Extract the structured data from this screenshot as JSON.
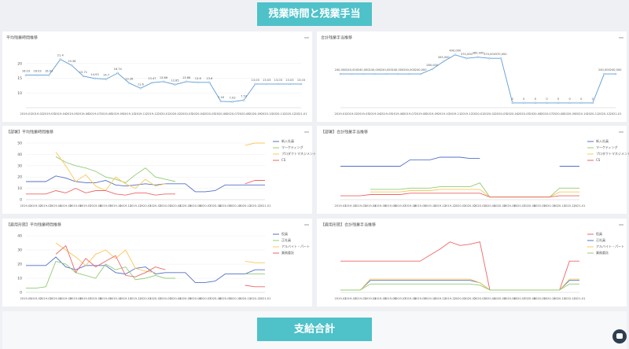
{
  "header": {
    "title": "残業時間と残業手当"
  },
  "footer": {
    "title": "支給合計"
  },
  "chart_data": [
    {
      "type": "line",
      "title": "平均残業時間推移",
      "color": "#5b9bd5",
      "grid": true,
      "categories": [
        "2019-01",
        "2019-02",
        "2019-03",
        "2019-04",
        "2019-05",
        "2019-06",
        "2019-07",
        "2019-08",
        "2019-09",
        "2019-10",
        "2019-11",
        "2019-12",
        "2020-01",
        "2020-02",
        "2020-03",
        "2020-04",
        "2020-05",
        "2020-06",
        "2020-07",
        "2020-08",
        "2020-09",
        "2020-10",
        "2020-11",
        "2020-12",
        "2021-01"
      ],
      "values": [
        16.03,
        16.03,
        16.03,
        21.4,
        19.36,
        15.71,
        14.93,
        14.7,
        16.74,
        13.36,
        11.6,
        13.47,
        13.86,
        12.85,
        13.86,
        13.6,
        13.6,
        7.16,
        7.03,
        7.53,
        13.03,
        13.03,
        13.03,
        13.03,
        13.03
      ],
      "ylim": [
        5,
        25
      ],
      "yticks": [
        10,
        15,
        20
      ]
    },
    {
      "type": "line",
      "title": "合計残業手当推移",
      "color": "#5b9bd5",
      "grid": true,
      "categories": [
        "2019-01",
        "2019-02",
        "2019-03",
        "2019-04",
        "2019-05",
        "2019-06",
        "2019-07",
        "2019-08",
        "2019-09",
        "2019-10",
        "2019-11",
        "2019-12",
        "2020-01",
        "2020-02",
        "2020-03",
        "2020-04",
        "2020-05",
        "2020-06",
        "2020-07",
        "2020-08",
        "2020-09",
        "2020-10",
        "2020-11",
        "2020-12",
        "2021-01"
      ],
      "values": [
        240000,
        240000,
        240000,
        240000,
        240000,
        240000,
        240000,
        240000,
        280000,
        345000,
        400000,
        370000,
        380000,
        370000,
        370000,
        0,
        0,
        0,
        0,
        0,
        0,
        0,
        0,
        240000,
        240000
      ],
      "value_labels": [
        "240,000",
        "240,000",
        "240,000",
        "240,000",
        "240,000",
        "240,000",
        "240,000",
        "240,000",
        "280,000",
        "345,000",
        "400,000",
        "370,000",
        "380,000",
        "370,000",
        "370,000",
        "0",
        "0",
        "0",
        "0",
        "0",
        "0",
        "0",
        "0",
        "240,000",
        "240,000"
      ],
      "ylim": [
        -40000,
        450000
      ],
      "yticks": []
    },
    {
      "type": "line",
      "title": "【部署】平均残業時間推移",
      "grid": true,
      "categories": [
        "2019-01",
        "2019-02",
        "2019-03",
        "2019-04",
        "2019-05",
        "2019-06",
        "2019-07",
        "2019-08",
        "2019-09",
        "2019-10",
        "2019-11",
        "2019-12",
        "2020-01",
        "2020-02",
        "2020-03",
        "2020-04",
        "2020-05",
        "2020-06",
        "2020-07",
        "2020-08",
        "2020-09",
        "2020-10",
        "2020-11",
        "2020-12",
        "2021-01"
      ],
      "series": [
        {
          "name": "新入社員",
          "color": "#5470c6",
          "values": [
            16,
            16,
            16,
            21,
            19,
            16,
            15,
            15,
            17,
            13,
            12,
            13,
            14,
            13,
            14,
            14,
            14,
            7,
            7,
            8,
            13,
            13,
            13,
            13,
            13
          ]
        },
        {
          "name": "マーケティング",
          "color": "#91cc75",
          "values": [
            null,
            null,
            null,
            38,
            33,
            30,
            28,
            25,
            20,
            18,
            15,
            22,
            28,
            20,
            18,
            16,
            null,
            null,
            null,
            null,
            null,
            null,
            null,
            null,
            null
          ]
        },
        {
          "name": "プロダクトマネジメント",
          "color": "#fac858",
          "values": [
            null,
            null,
            null,
            42,
            30,
            16,
            22,
            12,
            8,
            20,
            14,
            10,
            18,
            12,
            14,
            null,
            null,
            null,
            null,
            null,
            null,
            null,
            48,
            50,
            50
          ]
        },
        {
          "name": "CS",
          "color": "#ee6666",
          "values": [
            5,
            5,
            5,
            8,
            6,
            10,
            6,
            8,
            8,
            5,
            4,
            6,
            6,
            4,
            5,
            5,
            null,
            null,
            null,
            null,
            null,
            null,
            14,
            17,
            17
          ]
        }
      ],
      "ylim": [
        0,
        50
      ],
      "yticks": [
        0,
        10,
        20,
        30,
        40,
        50
      ]
    },
    {
      "type": "line",
      "title": "【部署】合計残業手当推移",
      "grid": true,
      "categories": [
        "2019-01",
        "2019-02",
        "2019-03",
        "2019-04",
        "2019-05",
        "2019-06",
        "2019-07",
        "2019-08",
        "2019-09",
        "2019-10",
        "2019-11",
        "2019-12",
        "2020-01",
        "2020-02",
        "2020-03",
        "2020-04",
        "2020-05",
        "2020-06",
        "2020-07",
        "2020-08",
        "2020-09",
        "2020-10",
        "2020-11",
        "2020-12",
        "2021-01"
      ],
      "series": [
        {
          "name": "新入社員",
          "color": "#5470c6",
          "values": [
            240000,
            240000,
            240000,
            240000,
            240000,
            240000,
            240000,
            290000,
            290000,
            290000,
            310000,
            310000,
            310000,
            300000,
            300000,
            null,
            null,
            null,
            null,
            null,
            null,
            null,
            240000,
            240000,
            240000
          ]
        },
        {
          "name": "マーケティング",
          "color": "#91cc75",
          "values": [
            null,
            null,
            null,
            60000,
            60000,
            60000,
            60000,
            70000,
            70000,
            70000,
            80000,
            80000,
            80000,
            80000,
            110000,
            0,
            0,
            0,
            0,
            0,
            0,
            0,
            70000,
            70000,
            70000
          ]
        },
        {
          "name": "プロダクトマネジメント",
          "color": "#fac858",
          "values": [
            null,
            null,
            null,
            40000,
            40000,
            40000,
            40000,
            50000,
            50000,
            50000,
            60000,
            60000,
            60000,
            60000,
            60000,
            0,
            0,
            0,
            0,
            0,
            0,
            0,
            40000,
            40000,
            40000
          ]
        },
        {
          "name": "CS",
          "color": "#ee6666",
          "values": [
            10000,
            10000,
            10000,
            20000,
            20000,
            20000,
            20000,
            30000,
            30000,
            30000,
            30000,
            30000,
            30000,
            30000,
            30000,
            0,
            0,
            0,
            0,
            0,
            0,
            0,
            10000,
            10000,
            10000
          ]
        }
      ],
      "ylim": [
        -20000,
        420000
      ],
      "yticks": []
    },
    {
      "type": "line",
      "title": "【雇用形態】平均残業時間推移",
      "grid": true,
      "categories": [
        "2019-01",
        "2019-02",
        "2019-03",
        "2019-04",
        "2019-05",
        "2019-06",
        "2019-07",
        "2019-08",
        "2019-09",
        "2019-10",
        "2019-11",
        "2019-12",
        "2020-01",
        "2020-02",
        "2020-03",
        "2020-04",
        "2020-05",
        "2020-06",
        "2020-07",
        "2020-08",
        "2020-09",
        "2020-10",
        "2020-11",
        "2020-12",
        "2021-01"
      ],
      "series": [
        {
          "name": "役員",
          "color": "#5470c6",
          "values": [
            19,
            19,
            19,
            25,
            18,
            16,
            19,
            19,
            19,
            14,
            13,
            17,
            18,
            13,
            14,
            14,
            14,
            7,
            7,
            8,
            13,
            13,
            13,
            16,
            16
          ]
        },
        {
          "name": "正社員",
          "color": "#91cc75",
          "values": [
            3,
            3,
            4,
            22,
            20,
            14,
            12,
            10,
            20,
            16,
            18,
            9,
            10,
            12,
            10,
            10,
            null,
            null,
            null,
            null,
            null,
            null,
            13,
            13,
            13
          ]
        },
        {
          "name": "アルバイト・パート",
          "color": "#fac858",
          "values": [
            null,
            null,
            null,
            35,
            30,
            25,
            19,
            27,
            30,
            24,
            30,
            17,
            15,
            14,
            null,
            null,
            null,
            null,
            null,
            null,
            null,
            null,
            22,
            21,
            21
          ]
        },
        {
          "name": "業務委託",
          "color": "#ee6666",
          "values": [
            null,
            null,
            null,
            27,
            33,
            14,
            24,
            18,
            22,
            26,
            12,
            11,
            14,
            18,
            16,
            null,
            null,
            null,
            null,
            null,
            null,
            null,
            5,
            4,
            4
          ]
        }
      ],
      "ylim": [
        0,
        40
      ],
      "yticks": [
        0,
        10,
        20,
        30,
        40
      ]
    },
    {
      "type": "line",
      "title": "【雇用形態】合計残業手当推移",
      "grid": true,
      "categories": [
        "2019-01",
        "2019-02",
        "2019-03",
        "2019-04",
        "2019-05",
        "2019-06",
        "2019-07",
        "2019-08",
        "2019-09",
        "2019-10",
        "2019-11",
        "2019-12",
        "2020-01",
        "2020-02",
        "2020-03",
        "2020-04",
        "2020-05",
        "2020-06",
        "2020-07",
        "2020-08",
        "2020-09",
        "2020-10",
        "2020-11",
        "2020-12",
        "2021-01"
      ],
      "series": [
        {
          "name": "役員",
          "color": "#ee6666",
          "values": [
            240000,
            240000,
            240000,
            240000,
            240000,
            240000,
            240000,
            240000,
            240000,
            290000,
            340000,
            400000,
            370000,
            380000,
            400000,
            0,
            0,
            0,
            0,
            0,
            0,
            0,
            0,
            240000,
            240000
          ]
        },
        {
          "name": "正社員",
          "color": "#5470c6",
          "values": [
            0,
            0,
            0,
            80000,
            80000,
            80000,
            80000,
            80000,
            80000,
            80000,
            80000,
            80000,
            80000,
            80000,
            60000,
            0,
            0,
            0,
            0,
            0,
            0,
            0,
            0,
            80000,
            80000
          ]
        },
        {
          "name": "アルバイト・パート",
          "color": "#fac858",
          "values": [
            0,
            0,
            0,
            90000,
            90000,
            90000,
            90000,
            90000,
            90000,
            90000,
            90000,
            90000,
            90000,
            90000,
            60000,
            0,
            0,
            0,
            0,
            0,
            0,
            0,
            0,
            90000,
            90000
          ]
        },
        {
          "name": "業務委託",
          "color": "#91cc75",
          "values": [
            0,
            0,
            0,
            50000,
            50000,
            50000,
            50000,
            50000,
            50000,
            50000,
            50000,
            50000,
            50000,
            50000,
            40000,
            0,
            0,
            0,
            0,
            0,
            0,
            0,
            0,
            50000,
            50000
          ]
        }
      ],
      "ylim": [
        -20000,
        450000
      ],
      "yticks": []
    }
  ]
}
